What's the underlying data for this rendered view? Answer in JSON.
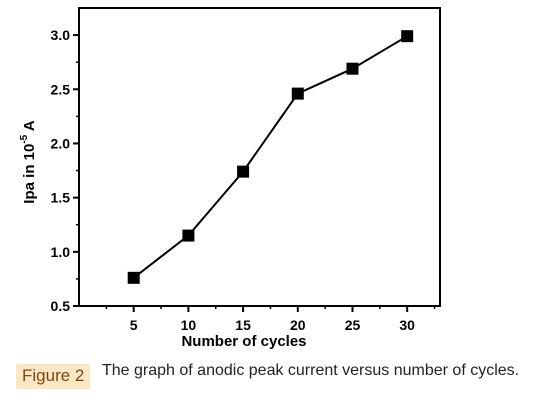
{
  "chart_data": {
    "type": "line",
    "x": [
      5,
      10,
      15,
      20,
      25,
      30
    ],
    "series": [
      {
        "values": [
          0.76,
          1.15,
          1.74,
          2.46,
          2.69,
          2.99
        ]
      }
    ],
    "xlabel": "Number of cycles",
    "ylabel_main": "Ipa in 10",
    "ylabel_exp": "-5",
    "ylabel_unit": " A",
    "xlim": [
      0,
      33
    ],
    "ylim": [
      0.5,
      3.25
    ],
    "xticks": [
      5,
      10,
      15,
      20,
      25,
      30
    ],
    "yticks": [
      0.5,
      1.0,
      1.5,
      2.0,
      2.5,
      3.0
    ],
    "ytick_labels": [
      "0.5",
      "1.0",
      "1.5",
      "2.0",
      "2.5",
      "3.0"
    ],
    "marker": "square",
    "grid": false,
    "colors": {
      "line": "#000000",
      "marker": "#000000"
    }
  },
  "caption": {
    "label": "Figure 2",
    "text": "The graph of anodic peak current versus number of cycles."
  }
}
